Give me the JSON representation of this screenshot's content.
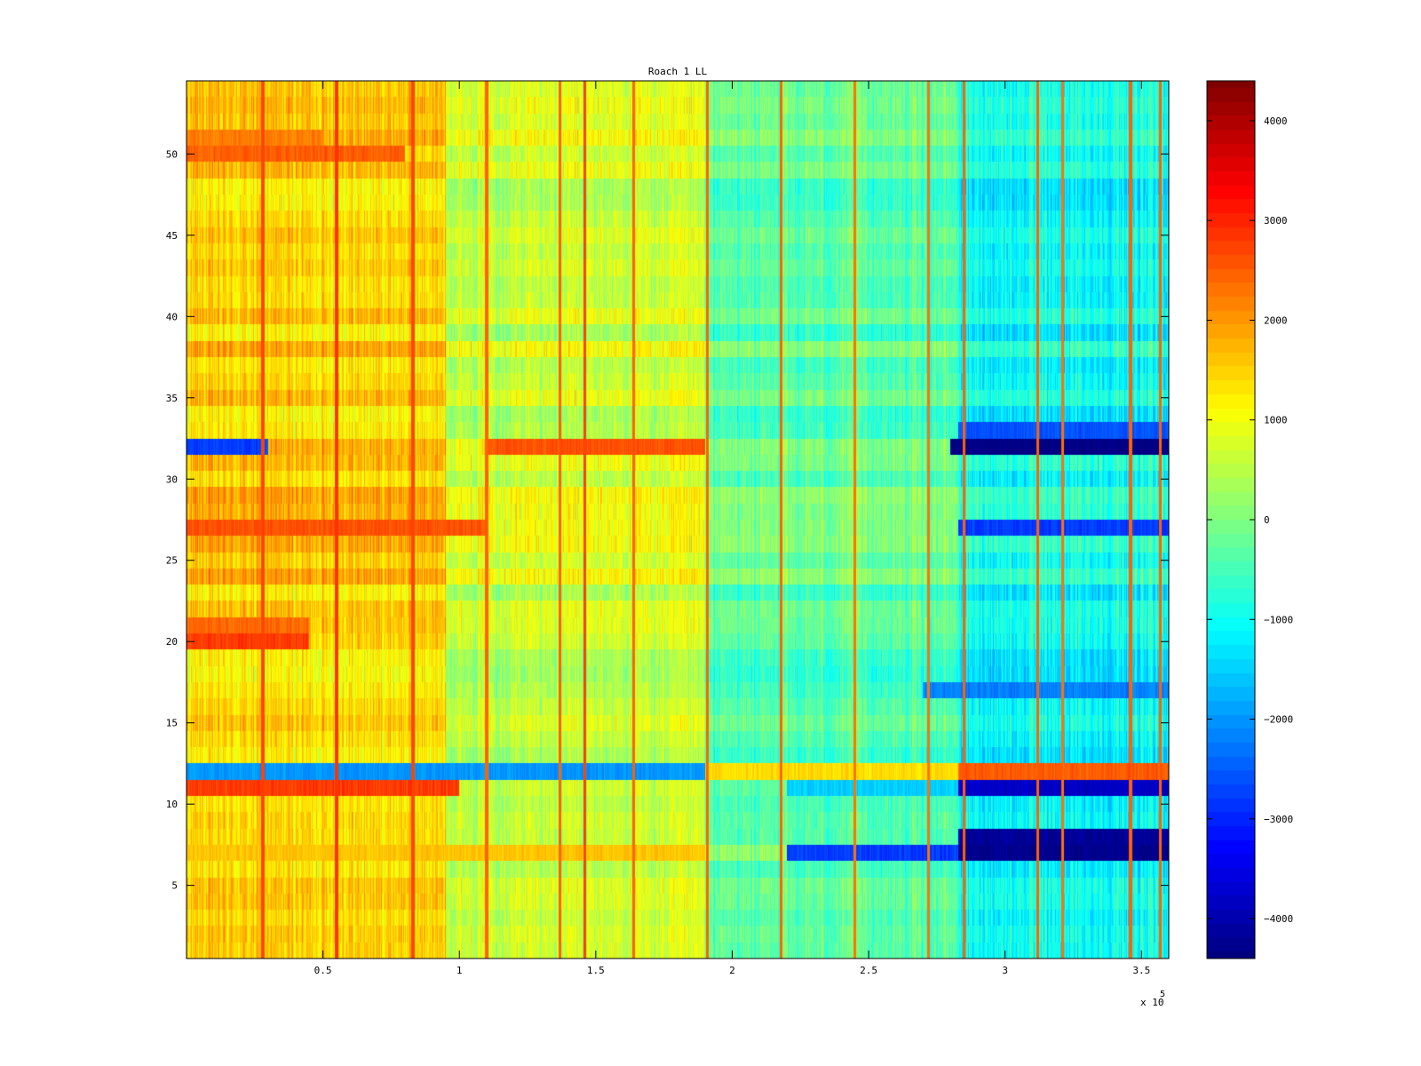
{
  "chart_data": {
    "type": "heatmap",
    "title": "Roach 1 LL",
    "xlabel": "",
    "ylabel": "",
    "x_range": [
      0,
      360000
    ],
    "y_range": [
      0.5,
      54.5
    ],
    "x_ticks": [
      {
        "value": 50000,
        "label": "0.5"
      },
      {
        "value": 100000,
        "label": "1"
      },
      {
        "value": 150000,
        "label": "1.5"
      },
      {
        "value": 200000,
        "label": "2"
      },
      {
        "value": 250000,
        "label": "2.5"
      },
      {
        "value": 300000,
        "label": "3"
      },
      {
        "value": 350000,
        "label": "3.5"
      }
    ],
    "x_exponent_label": "x 10",
    "x_exponent": "5",
    "y_ticks": [
      {
        "value": 5,
        "label": "5"
      },
      {
        "value": 10,
        "label": "10"
      },
      {
        "value": 15,
        "label": "15"
      },
      {
        "value": 20,
        "label": "20"
      },
      {
        "value": 25,
        "label": "25"
      },
      {
        "value": 30,
        "label": "30"
      },
      {
        "value": 35,
        "label": "35"
      },
      {
        "value": 40,
        "label": "40"
      },
      {
        "value": 45,
        "label": "45"
      },
      {
        "value": 50,
        "label": "50"
      }
    ],
    "colormap": "jet",
    "color_range": [
      -4400,
      4400
    ],
    "colorbar_ticks": [
      {
        "value": 4000,
        "label": "4000"
      },
      {
        "value": 3000,
        "label": "3000"
      },
      {
        "value": 2000,
        "label": "2000"
      },
      {
        "value": 1000,
        "label": "1000"
      },
      {
        "value": 0,
        "label": "0"
      },
      {
        "value": -1000,
        "label": "−1000"
      },
      {
        "value": -2000,
        "label": "−2000"
      },
      {
        "value": -3000,
        "label": "−3000"
      },
      {
        "value": -4000,
        "label": "−4000"
      }
    ],
    "rows": 54,
    "time_segments": [
      {
        "x_start": 0,
        "x_end": 95000,
        "base_value": 1500
      },
      {
        "x_start": 95000,
        "x_end": 190000,
        "base_value": 700
      },
      {
        "x_start": 190000,
        "x_end": 283000,
        "base_value": -300
      },
      {
        "x_start": 283000,
        "x_end": 360000,
        "base_value": -1000
      }
    ],
    "row_bands": [
      {
        "row": 7,
        "x_start": 0,
        "x_end": 190000,
        "value": 1600
      },
      {
        "row": 7,
        "x_start": 220000,
        "x_end": 283000,
        "value": -2800
      },
      {
        "row": 7,
        "x_start": 283000,
        "x_end": 360000,
        "value": -4300
      },
      {
        "row": 8,
        "x_start": 283000,
        "x_end": 360000,
        "value": -4200
      },
      {
        "row": 11,
        "x_start": 0,
        "x_end": 100000,
        "value": 2800
      },
      {
        "row": 11,
        "x_start": 220000,
        "x_end": 283000,
        "value": -1500
      },
      {
        "row": 11,
        "x_start": 283000,
        "x_end": 360000,
        "value": -3800
      },
      {
        "row": 12,
        "x_start": 0,
        "x_end": 190000,
        "value": -2000
      },
      {
        "row": 12,
        "x_start": 190000,
        "x_end": 283000,
        "value": 1400
      },
      {
        "row": 12,
        "x_start": 283000,
        "x_end": 360000,
        "value": 2500
      },
      {
        "row": 17,
        "x_start": 270000,
        "x_end": 360000,
        "value": -2200
      },
      {
        "row": 20,
        "x_start": 0,
        "x_end": 45000,
        "value": 2800
      },
      {
        "row": 21,
        "x_start": 0,
        "x_end": 45000,
        "value": 2400
      },
      {
        "row": 27,
        "x_start": 0,
        "x_end": 110000,
        "value": 2600
      },
      {
        "row": 27,
        "x_start": 283000,
        "x_end": 360000,
        "value": -2800
      },
      {
        "row": 32,
        "x_start": 0,
        "x_end": 30000,
        "value": -2800
      },
      {
        "row": 32,
        "x_start": 110000,
        "x_end": 190000,
        "value": 2600
      },
      {
        "row": 32,
        "x_start": 280000,
        "x_end": 360000,
        "value": -4400
      },
      {
        "row": 33,
        "x_start": 283000,
        "x_end": 360000,
        "value": -2600
      },
      {
        "row": 50,
        "x_start": 0,
        "x_end": 80000,
        "value": 2500
      },
      {
        "row": 51,
        "x_start": 0,
        "x_end": 50000,
        "value": 2200
      }
    ],
    "column_spikes": [
      {
        "x": 28000,
        "value": 2700
      },
      {
        "x": 55000,
        "value": 2900
      },
      {
        "x": 83000,
        "value": 2700
      },
      {
        "x": 110000,
        "value": 2500
      },
      {
        "x": 137000,
        "value": 2400
      },
      {
        "x": 146000,
        "value": 2700
      },
      {
        "x": 164000,
        "value": 2500
      },
      {
        "x": 191000,
        "value": 2500
      },
      {
        "x": 218000,
        "value": 2400
      },
      {
        "x": 245000,
        "value": 2300
      },
      {
        "x": 272000,
        "value": 2300
      },
      {
        "x": 285000,
        "value": 2500
      },
      {
        "x": 312000,
        "value": 2400
      },
      {
        "x": 321000,
        "value": 2300
      },
      {
        "x": 346000,
        "value": 2400
      },
      {
        "x": 357000,
        "value": 2400
      }
    ]
  }
}
